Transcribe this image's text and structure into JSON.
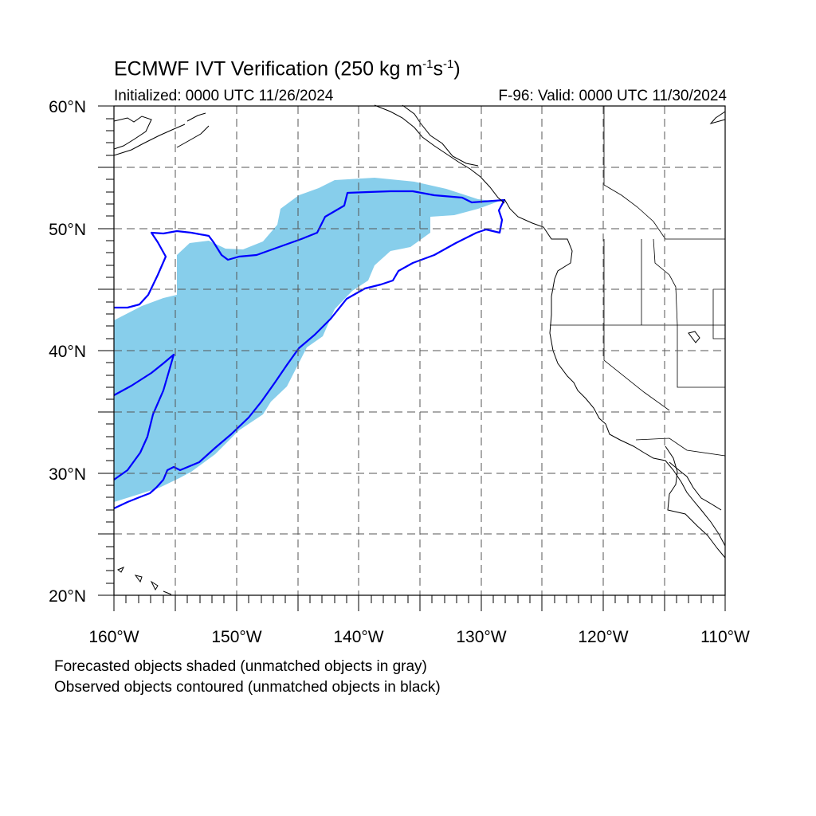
{
  "title": {
    "prefix": "ECMWF IVT Verification (250 kg m",
    "exp1": "-1",
    "mid": "s",
    "exp2": "-1",
    "suffix": ")"
  },
  "initialized": "Initialized: 0000 UTC 11/26/2024",
  "valid": "F-96: Valid: 0000 UTC 11/30/2024",
  "lat_labels": [
    "60°N",
    "50°N",
    "40°N",
    "30°N",
    "20°N"
  ],
  "lon_labels": [
    "160°W",
    "150°W",
    "140°W",
    "130°W",
    "120°W",
    "110°W"
  ],
  "notes": [
    "Forecasted objects shaded (unmatched objects in gray)",
    "Observed objects contoured (unmatched objects in black)"
  ],
  "colors": {
    "forecast_fill": "#87ceeb",
    "observed_contour": "#0000ff",
    "coastline": "#000000",
    "grid": "#555555"
  },
  "map": {
    "extent": {
      "lon_min": -160,
      "lon_max": -110,
      "lat_min": 20,
      "lat_max": 60
    },
    "grid_interval_deg": 5,
    "grid_style": "dashed"
  }
}
